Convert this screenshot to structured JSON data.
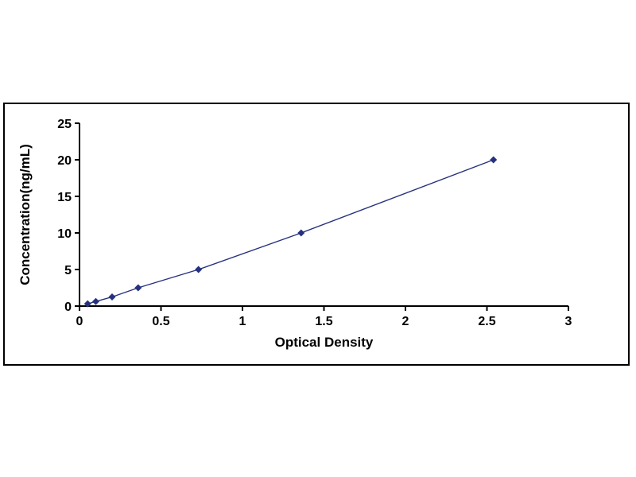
{
  "chart_data": {
    "type": "line",
    "title": "",
    "xlabel": "Optical Density",
    "ylabel": "Concentration(ng/mL)",
    "x": [
      0.05,
      0.1,
      0.2,
      0.36,
      0.73,
      1.36,
      2.54
    ],
    "y": [
      0.31,
      0.63,
      1.25,
      2.5,
      5,
      10,
      20
    ],
    "xlim": [
      0,
      3
    ],
    "ylim": [
      0,
      25
    ],
    "x_ticks": [
      0,
      0.5,
      1,
      1.5,
      2,
      2.5,
      3
    ],
    "x_tick_labels": [
      "0",
      "0.5",
      "1",
      "1.5",
      "2",
      "2.5",
      "3"
    ],
    "y_ticks": [
      0,
      5,
      10,
      15,
      20,
      25
    ],
    "y_tick_labels": [
      "0",
      "5",
      "10",
      "15",
      "20",
      "25"
    ],
    "grid": false,
    "legend": "none",
    "line_color": "#26317E",
    "marker": "diamond",
    "marker_color": "#26317E",
    "axis_color": "#000000",
    "tick_font_weight": "bold"
  }
}
